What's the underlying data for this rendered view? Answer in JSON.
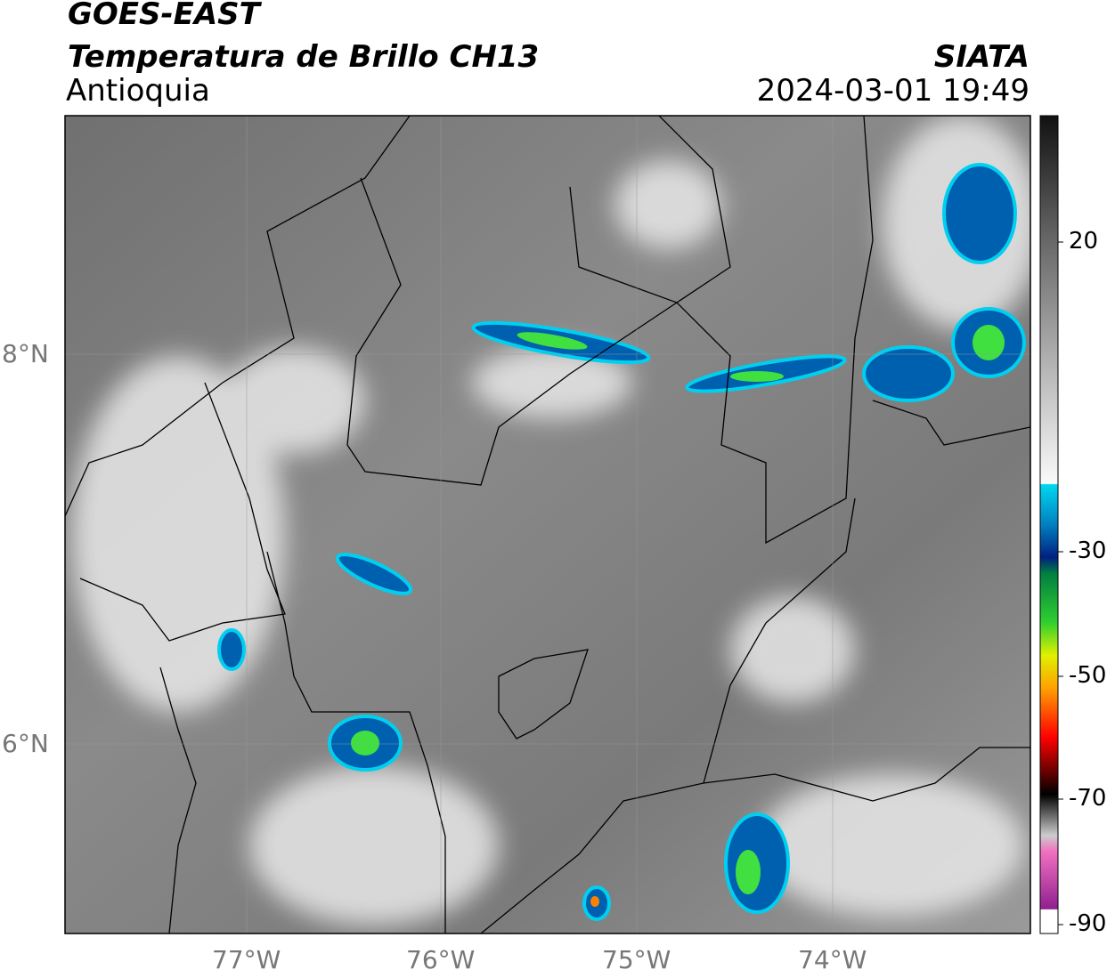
{
  "header": {
    "satellite": "GOES-EAST",
    "product": "Temperatura de Brillo CH13",
    "region": "Antioquia",
    "source": "SIATA",
    "datetime": "2024-03-01 19:49"
  },
  "map": {
    "lat_labels": [
      "8°N",
      "6°N"
    ],
    "lon_labels": [
      "77°W",
      "76°W",
      "75°W",
      "74°W"
    ]
  },
  "colorbar": {
    "ticks": [
      20,
      -30,
      -50,
      -70,
      -90
    ]
  }
}
